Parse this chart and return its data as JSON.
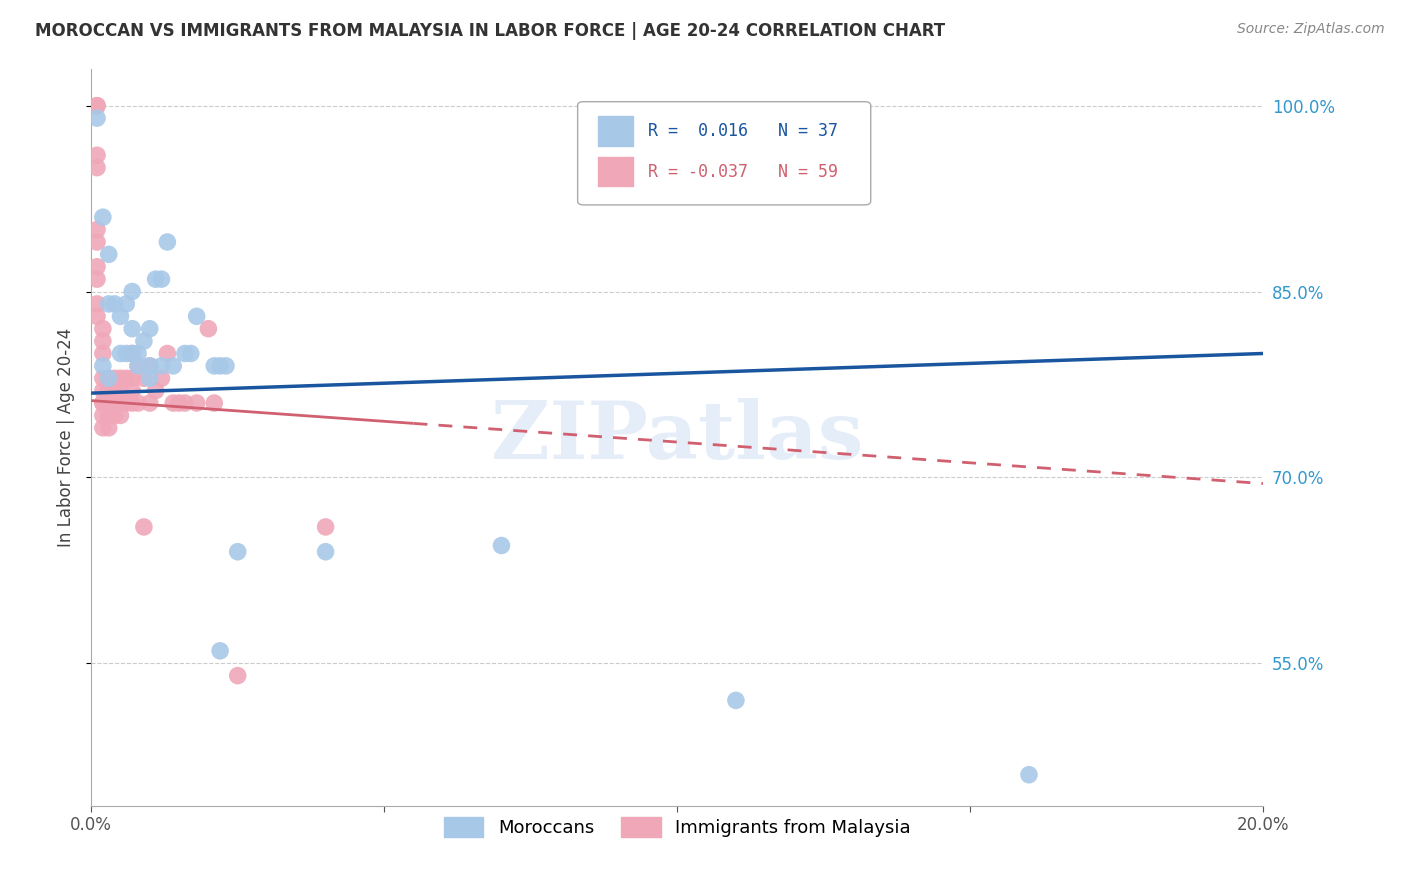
{
  "title": "MOROCCAN VS IMMIGRANTS FROM MALAYSIA IN LABOR FORCE | AGE 20-24 CORRELATION CHART",
  "source": "Source: ZipAtlas.com",
  "ylabel": "In Labor Force | Age 20-24",
  "xlim": [
    0.0,
    0.2
  ],
  "ylim": [
    0.435,
    1.03
  ],
  "ytick_values_right": [
    1.0,
    0.85,
    0.7,
    0.55
  ],
  "blue_r": 0.016,
  "blue_n": 37,
  "pink_r": -0.037,
  "pink_n": 59,
  "blue_color": "#a8c8e8",
  "pink_color": "#f0a8b8",
  "blue_line_color": "#1a55a0",
  "pink_line_color": "#d06070",
  "watermark": "ZIPatlas",
  "legend_label_blue": "Moroccans",
  "legend_label_pink": "Immigrants from Malaysia",
  "blue_trendline": [
    0.0,
    0.768,
    0.2,
    0.8
  ],
  "pink_trendline": [
    0.0,
    0.762,
    0.2,
    0.695
  ],
  "blue_points_x": [
    0.001,
    0.002,
    0.003,
    0.003,
    0.004,
    0.005,
    0.005,
    0.006,
    0.006,
    0.007,
    0.007,
    0.008,
    0.009,
    0.01,
    0.01,
    0.011,
    0.012,
    0.013,
    0.014,
    0.016,
    0.017,
    0.018,
    0.021,
    0.022,
    0.023,
    0.025,
    0.04,
    0.07,
    0.11,
    0.16,
    0.002,
    0.003,
    0.007,
    0.008,
    0.01,
    0.012,
    0.022
  ],
  "blue_points_y": [
    0.99,
    0.91,
    0.88,
    0.84,
    0.84,
    0.83,
    0.8,
    0.84,
    0.8,
    0.85,
    0.8,
    0.8,
    0.81,
    0.79,
    0.82,
    0.86,
    0.86,
    0.89,
    0.79,
    0.8,
    0.8,
    0.83,
    0.79,
    0.79,
    0.79,
    0.64,
    0.64,
    0.645,
    0.52,
    0.46,
    0.79,
    0.78,
    0.82,
    0.79,
    0.78,
    0.79,
    0.56
  ],
  "pink_points_x": [
    0.001,
    0.001,
    0.001,
    0.001,
    0.001,
    0.001,
    0.001,
    0.001,
    0.001,
    0.001,
    0.002,
    0.002,
    0.002,
    0.002,
    0.002,
    0.002,
    0.002,
    0.002,
    0.002,
    0.003,
    0.003,
    0.003,
    0.003,
    0.003,
    0.003,
    0.003,
    0.003,
    0.004,
    0.004,
    0.004,
    0.004,
    0.004,
    0.005,
    0.005,
    0.005,
    0.005,
    0.006,
    0.006,
    0.007,
    0.007,
    0.007,
    0.007,
    0.008,
    0.008,
    0.009,
    0.009,
    0.01,
    0.01,
    0.011,
    0.012,
    0.013,
    0.014,
    0.015,
    0.016,
    0.018,
    0.02,
    0.021,
    0.025,
    0.04
  ],
  "pink_points_y": [
    1.0,
    1.0,
    0.96,
    0.95,
    0.9,
    0.89,
    0.87,
    0.86,
    0.84,
    0.83,
    0.82,
    0.81,
    0.8,
    0.78,
    0.77,
    0.76,
    0.76,
    0.75,
    0.74,
    0.78,
    0.77,
    0.77,
    0.76,
    0.76,
    0.76,
    0.75,
    0.74,
    0.78,
    0.77,
    0.76,
    0.76,
    0.75,
    0.78,
    0.77,
    0.76,
    0.75,
    0.78,
    0.76,
    0.8,
    0.78,
    0.77,
    0.76,
    0.79,
    0.76,
    0.78,
    0.66,
    0.79,
    0.76,
    0.77,
    0.78,
    0.8,
    0.76,
    0.76,
    0.76,
    0.76,
    0.82,
    0.76,
    0.54,
    0.66
  ]
}
